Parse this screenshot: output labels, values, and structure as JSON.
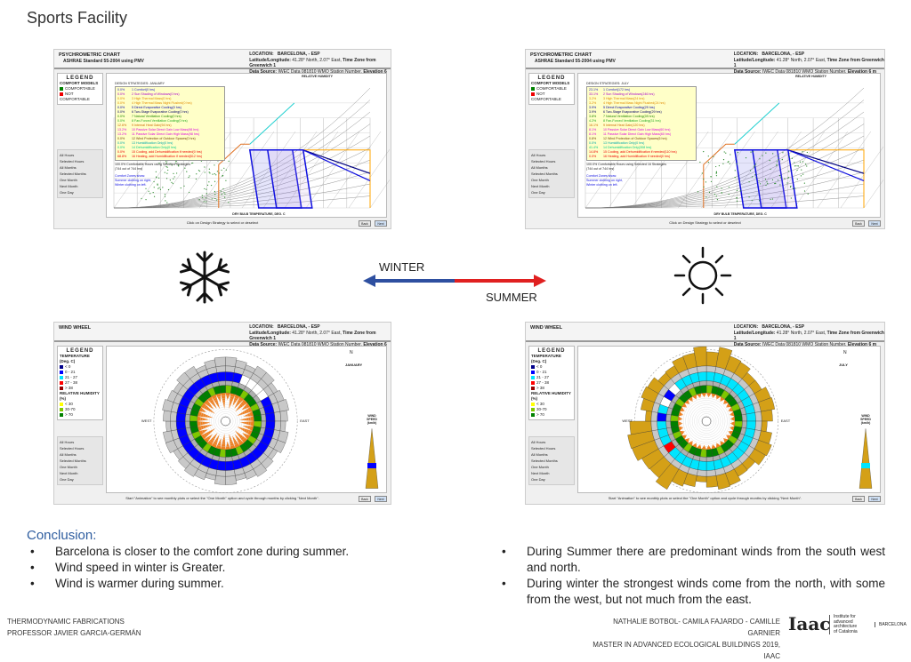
{
  "title": "Sports Facility",
  "psychro": {
    "title": "PSYCHROMETRIC CHART",
    "standard_pmv": "ASHRAE Standard 55-2004 using PMV",
    "location_label": "LOCATION:",
    "location": "BARCELONA, - ESP",
    "latlong_label": "Latitude/Longitude:",
    "latlong": "41.28° North, 2.07° East,",
    "tz": "Time Zone from Greenwich 1",
    "source_label": "Data Source:",
    "source": "IWEC Data    081810 WMO Station Number,",
    "elev": "Elevation 6 m",
    "legend": "LEGEND",
    "comfort_models": "COMFORT MODELS",
    "comfortable": "COMFORTABLE",
    "not_comfortable": "NOT COMFORTABLE",
    "xlabel": "DRY BULB TEMPERATURE, DEG. C",
    "rh_label": "RELATIVE HUMIDITY",
    "footer": "Click on Design Strategy to select or deselect",
    "back": "Back",
    "next": "Next",
    "comfort_note": [
      "Comfort Zones show:",
      "Summer clothing on right,",
      "Winter clothing on left."
    ],
    "winter": {
      "strategies_title": "DESIGN STRATEGIES: JANUARY",
      "strategies": [
        [
          "0.0%",
          "1 Comfort(0 hrs)",
          "#2222cc"
        ],
        [
          "0.0%",
          "2 Sun Shading of Windows(0 hrs)",
          "#aa00cc"
        ],
        [
          "0.0%",
          "3 High Thermal Mass(0 hrs)",
          "#e08a00"
        ],
        [
          "0.0%",
          "4 High Thermal Mass Night Flushed(0 hrs)",
          "#e08a00"
        ],
        [
          "0.0%",
          "5 Direct Evaporative Cooling(0 hrs)",
          "#0000aa"
        ],
        [
          "0.0%",
          "6 Two-Stage Evaporative Cooling(0 hrs)",
          "#000066"
        ],
        [
          "0.0%",
          "7 Natural Ventilation Cooling(0 hrs)",
          "#228800"
        ],
        [
          "0.0%",
          "8 Fan-Forced Ventilation Cooling(0 hrs)",
          "#22aa22"
        ],
        [
          "12.6%",
          "9 Internal Heat Gain(94 hrs)",
          "#cc6600"
        ],
        [
          "13.2%",
          "10 Passive Solar Direct Gain Low Mass(98 hrs)",
          "#dd00dd"
        ],
        [
          "13.2%",
          "11 Passive Solar Direct Gain High Mass(98 hrs)",
          "#dd00dd"
        ],
        [
          "0.0%",
          "12 Wind Protection of Outdoor Spaces(0 hrs)",
          "#774400"
        ],
        [
          "0.0%",
          "13 Humidification Only(0 hrs)",
          "#00aaaa"
        ],
        [
          "0.0%",
          "14 Dehumidification Only(0 hrs)",
          "#00cc88"
        ],
        [
          "0.0%",
          "15 Cooling, add Dehumidification if needed(0 hrs)",
          "#ee0000"
        ],
        [
          "68.8%",
          "16 Heating, add Humidification if needed(512 hrs)",
          "#ee0000"
        ]
      ],
      "summary": "100.0%  Comfortable Hours using Selected Strategies",
      "summary2": "(744 out of 744 hrs)"
    },
    "summer": {
      "strategies_title": "DESIGN STRATEGIES: JULY",
      "strategies": [
        [
          "23.1%",
          "1 Comfort(172 hrs)",
          "#2222cc"
        ],
        [
          "33.1%",
          "2 Sun Shading of Windows(246 hrs)",
          "#aa00cc"
        ],
        [
          "3.2%",
          "3 High Thermal Mass(24 hrs)",
          "#e08a00"
        ],
        [
          "3.2%",
          "4 High Thermal Mass Night Flushed(24 hrs)",
          "#e08a00"
        ],
        [
          "3.9%",
          "5 Direct Evaporative Cooling(29 hrs)",
          "#0000aa"
        ],
        [
          "3.9%",
          "6 Two-Stage Evaporative Cooling(29 hrs)",
          "#000066"
        ],
        [
          "3.8%",
          "7 Natural Ventilation Cooling(28 hrs)",
          "#228800"
        ],
        [
          "4.2%",
          "8 Fan-Forced Ventilation Cooling(31 hrs)",
          "#22aa22"
        ],
        [
          "16.1%",
          "9 Internal Heat Gain(120 hrs)",
          "#cc6600"
        ],
        [
          "8.1%",
          "10 Passive Solar Direct Gain Low Mass(60 hrs)",
          "#dd00dd"
        ],
        [
          "8.1%",
          "11 Passive Solar Direct Gain High Mass(60 hrs)",
          "#dd00dd"
        ],
        [
          "0.8%",
          "12 Wind Protection of Outdoor Spaces(6 hrs)",
          "#774400"
        ],
        [
          "0.0%",
          "13 Humidification Only(0 hrs)",
          "#00aaaa"
        ],
        [
          "41.4%",
          "14 Dehumidification Only(308 hrs)",
          "#00cc88"
        ],
        [
          "14.8%",
          "15 Cooling, add Dehumidification if needed(110 hrs)",
          "#ee0000"
        ],
        [
          "0.0%",
          "16 Heating, add Humidification if needed(0 hrs)",
          "#ee0000"
        ]
      ],
      "summary": "100.0%  Comfortable Hours using Selected 16 Strategies",
      "summary2": "(744 out of 744 hrs)"
    }
  },
  "wind": {
    "title": "WIND WHEEL",
    "legend": "LEGEND",
    "temp_title": "TEMPERATURE (Deg. C)",
    "temps": [
      [
        "< 0",
        "#00008b"
      ],
      [
        "0 - 21",
        "#0000ff"
      ],
      [
        "21 - 27",
        "#00e5ff"
      ],
      [
        "27 - 38",
        "#ff0000"
      ],
      [
        "> 38",
        "#990000"
      ]
    ],
    "rh_title": "RELATIVE HUMIDITY (%)",
    "rhs": [
      [
        "< 30",
        "#ffff00"
      ],
      [
        "30-70",
        "#7ec800"
      ],
      [
        "> 70",
        "#008000"
      ]
    ],
    "north": "N",
    "east": "EAST",
    "west": "WEST",
    "winter_month": "JANUARY",
    "summer_month": "JULY",
    "speed_label": "WIND SPEED (km/h)",
    "footer": "Start \"Animation\" to see monthly plots or select the \"One Month\" option and cycle through months by clicking \"Next Month\".",
    "back": "Back",
    "next": "Next",
    "controls": [
      "All Hours",
      "Selected Hours",
      "All Months",
      "Selected Months",
      "One Month",
      "Next Month",
      "One Day",
      "Start",
      "Pause",
      "Stop"
    ]
  },
  "arrow": {
    "winter": "WINTER",
    "summer": "SUMMER",
    "winter_color": "#2e4fa0",
    "summer_color": "#e02020"
  },
  "conclusion": {
    "heading": "Conclusion:",
    "left": [
      "Barcelona is closer to the comfort zone during summer.",
      "Wind speed in winter is Greater.",
      "Wind is warmer during summer."
    ],
    "right": [
      "During Summer there are predominant winds from the south west and north.",
      "During winter the strongest winds come from the north, with some from the west, but not much from the east."
    ]
  },
  "footer": {
    "course": "THERMODYNAMIC FABRICATIONS",
    "professor": "PROFESSOR JAVIER GARCIA-GERMÁN",
    "authors": "NATHALIE BOTBOL- CAMILA FAJARDO - CAMILLE GARNIER",
    "program": "MASTER IN ADVANCED ECOLOGICAL BUILDINGS 2019, IAAC",
    "logo": "Iaac",
    "logo_sub": [
      "Institute for",
      "advanced",
      "architecture",
      "of Catalonia"
    ],
    "city": "BARCELONA"
  }
}
